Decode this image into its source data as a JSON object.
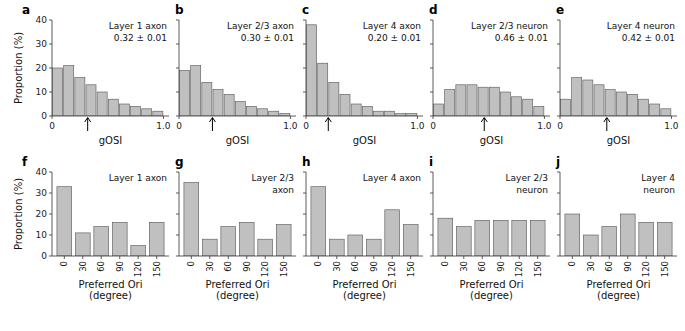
{
  "chart_data": [
    {
      "type": "histogram",
      "panel_label": "a",
      "title": "Layer 1 axon",
      "subtitle": "0.32 ± 0.01",
      "mean": 0.32,
      "bins": [
        0,
        0.1,
        0.2,
        0.3,
        0.4,
        0.5,
        0.6,
        0.7,
        0.8,
        0.9,
        1.0
      ],
      "values": [
        20,
        21,
        16,
        13,
        10,
        7,
        5,
        4,
        3,
        2
      ],
      "color": "#c0c0c0",
      "xlabel": "gOSI",
      "ylabel": "Proportion (%)",
      "xlim": [
        0,
        1.05
      ],
      "xticks": [
        0,
        {
          "value": 1.0,
          "label": "1.0"
        }
      ],
      "ylim": [
        0,
        40
      ],
      "yticks": [
        0,
        10,
        20,
        30,
        40
      ],
      "grid": false
    },
    {
      "type": "histogram",
      "panel_label": "b",
      "title": "Layer 2/3 axon",
      "subtitle": "0.30 ± 0.01",
      "mean": 0.3,
      "bins": [
        0,
        0.1,
        0.2,
        0.3,
        0.4,
        0.5,
        0.6,
        0.7,
        0.8,
        0.9,
        1.0
      ],
      "values": [
        19,
        21,
        14,
        11,
        9,
        6,
        4,
        3,
        2,
        1
      ],
      "color": "#c0c0c0",
      "xlabel": "gOSI",
      "xlim": [
        0,
        1.05
      ],
      "xticks": [
        0,
        {
          "value": 1.0,
          "label": "1.0"
        }
      ],
      "ylim": [
        0,
        40
      ],
      "yticks": [
        0,
        10,
        20,
        30,
        40
      ],
      "grid": false,
      "tick_labels": "x"
    },
    {
      "type": "histogram",
      "panel_label": "c",
      "title": "Layer 4 axon",
      "subtitle": "0.20 ± 0.01",
      "mean": 0.2,
      "bins": [
        0,
        0.1,
        0.2,
        0.3,
        0.4,
        0.5,
        0.6,
        0.7,
        0.8,
        0.9,
        1.0
      ],
      "values": [
        38,
        22,
        14,
        9,
        5,
        4,
        2,
        2,
        1,
        1
      ],
      "color": "#c0c0c0",
      "xlabel": "gOSI",
      "xlim": [
        0,
        1.05
      ],
      "xticks": [
        0,
        {
          "value": 1.0,
          "label": "1.0"
        }
      ],
      "ylim": [
        0,
        40
      ],
      "yticks": [
        0,
        10,
        20,
        30,
        40
      ],
      "grid": false,
      "tick_labels": "x"
    },
    {
      "type": "histogram",
      "panel_label": "d",
      "title": "Layer 2/3 neuron",
      "subtitle": "0.46 ± 0.01",
      "mean": 0.46,
      "bins": [
        0,
        0.1,
        0.2,
        0.3,
        0.4,
        0.5,
        0.6,
        0.7,
        0.8,
        0.9,
        1.0
      ],
      "values": [
        5,
        11,
        13,
        13,
        12,
        12,
        10,
        8,
        7,
        4
      ],
      "color": "#c0c0c0",
      "xlabel": "gOSI",
      "xlim": [
        0,
        1.05
      ],
      "xticks": [
        0,
        {
          "value": 1.0,
          "label": "1.0"
        }
      ],
      "ylim": [
        0,
        40
      ],
      "yticks": [
        0,
        10,
        20,
        30,
        40
      ],
      "grid": false,
      "tick_labels": "x"
    },
    {
      "type": "histogram",
      "panel_label": "e",
      "title": "Layer 4 neuron",
      "subtitle": "0.42 ± 0.01",
      "mean": 0.42,
      "bins": [
        0,
        0.1,
        0.2,
        0.3,
        0.4,
        0.5,
        0.6,
        0.7,
        0.8,
        0.9,
        1.0
      ],
      "values": [
        7,
        16,
        15,
        13,
        11,
        10,
        9,
        7,
        5,
        3
      ],
      "color": "#c0c0c0",
      "xlabel": "gOSI",
      "xlim": [
        0,
        1.05
      ],
      "xticks": [
        0,
        {
          "value": 1.0,
          "label": "1.0"
        }
      ],
      "ylim": [
        0,
        40
      ],
      "yticks": [
        0,
        10,
        20,
        30,
        40
      ],
      "grid": false,
      "tick_labels": "x"
    },
    {
      "type": "bar",
      "panel_label": "f",
      "title": "Layer 1 axon",
      "x": [
        0,
        30,
        60,
        90,
        120,
        150
      ],
      "values": [
        33,
        11,
        14,
        16,
        5,
        16
      ],
      "color": "#c0c0c0",
      "xlabel": "Preferred Ori\n(degree)",
      "ylabel": "Proportion (%)",
      "xlim": [
        -20,
        170
      ],
      "xticks": [
        0,
        30,
        60,
        90,
        120,
        150
      ],
      "ylim": [
        0,
        40
      ],
      "yticks": [
        0,
        10,
        20,
        30,
        40
      ],
      "grid": false
    },
    {
      "type": "bar",
      "panel_label": "g",
      "title": "Layer 2/3",
      "subtitle": "axon",
      "x": [
        0,
        30,
        60,
        90,
        120,
        150
      ],
      "values": [
        35,
        8,
        14,
        16,
        8,
        15
      ],
      "color": "#c0c0c0",
      "xlabel": "Preferred Ori\n(degree)",
      "xlim": [
        -20,
        170
      ],
      "xticks": [
        0,
        30,
        60,
        90,
        120,
        150
      ],
      "ylim": [
        0,
        40
      ],
      "yticks": [
        0,
        10,
        20,
        30,
        40
      ],
      "grid": false,
      "tick_labels": "x"
    },
    {
      "type": "bar",
      "panel_label": "h",
      "title": "Layer 4 axon",
      "x": [
        0,
        30,
        60,
        90,
        120,
        150
      ],
      "values": [
        33,
        8,
        10,
        8,
        22,
        15
      ],
      "color": "#c0c0c0",
      "xlabel": "Preferred Ori\n(degree)",
      "xlim": [
        -20,
        170
      ],
      "xticks": [
        0,
        30,
        60,
        90,
        120,
        150
      ],
      "ylim": [
        0,
        40
      ],
      "yticks": [
        0,
        10,
        20,
        30,
        40
      ],
      "grid": false,
      "tick_labels": "x"
    },
    {
      "type": "bar",
      "panel_label": "i",
      "title": "Layer 2/3",
      "subtitle": "neuron",
      "x": [
        0,
        30,
        60,
        90,
        120,
        150
      ],
      "values": [
        18,
        14,
        17,
        17,
        17,
        17
      ],
      "color": "#c0c0c0",
      "xlabel": "Preferred Ori\n(degree)",
      "xlim": [
        -20,
        170
      ],
      "xticks": [
        0,
        30,
        60,
        90,
        120,
        150
      ],
      "ylim": [
        0,
        40
      ],
      "yticks": [
        0,
        10,
        20,
        30,
        40
      ],
      "grid": false,
      "tick_labels": "x"
    },
    {
      "type": "bar",
      "panel_label": "j",
      "title": "Layer 4",
      "subtitle": "neuron",
      "x": [
        0,
        30,
        60,
        90,
        120,
        150
      ],
      "values": [
        20,
        10,
        14,
        20,
        16,
        16
      ],
      "color": "#c0c0c0",
      "xlabel": "Preferred Ori\n(degree)",
      "xlim": [
        -20,
        170
      ],
      "xticks": [
        0,
        30,
        60,
        90,
        120,
        150
      ],
      "ylim": [
        0,
        40
      ],
      "yticks": [
        0,
        10,
        20,
        30,
        40
      ],
      "grid": false,
      "tick_labels": "x"
    }
  ]
}
